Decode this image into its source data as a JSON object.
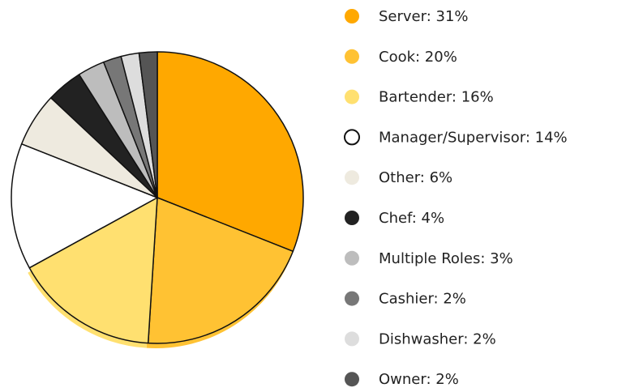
{
  "chart_data": {
    "type": "pie",
    "categories": [
      "Server: 31%",
      "Cook: 20%",
      "Bartender: 16%",
      "Manager/Supervisor: 14%",
      "Other: 6%",
      "Chef: 4%",
      "Multiple Roles: 3%",
      "Cashier: 2%",
      "Dishwasher: 2%",
      "Owner: 2%"
    ],
    "values": [
      31,
      20,
      16,
      14,
      6,
      4,
      3,
      2,
      2,
      2
    ],
    "colors": [
      "#ffa800",
      "#ffc233",
      "#ffe070",
      "#ffffff",
      "#eeeadf",
      "#222222",
      "#bdbdbd",
      "#777777",
      "#dddddd",
      "#555555"
    ],
    "legend": "right"
  }
}
